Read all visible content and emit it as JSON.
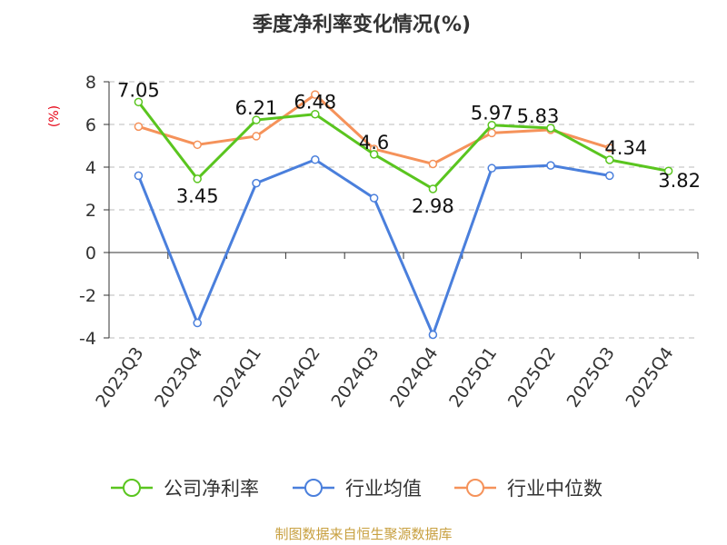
{
  "chart_data": {
    "type": "line",
    "title": "季度净利率变化情况(%)",
    "ylabel": "(%)",
    "categories": [
      "2023Q3",
      "2023Q4",
      "2024Q1",
      "2024Q2",
      "2024Q3",
      "2024Q4",
      "2025Q1",
      "2025Q2",
      "2025Q3",
      "2025Q4"
    ],
    "ylim": [
      -4,
      8
    ],
    "yticks": [
      -4,
      -2,
      0,
      2,
      4,
      6,
      8
    ],
    "grid": true,
    "legend_position": "bottom",
    "series": [
      {
        "name": "公司净利率",
        "color": "#5ac51f",
        "values": [
          7.05,
          3.45,
          6.21,
          6.48,
          4.6,
          2.98,
          5.97,
          5.83,
          4.34,
          3.82
        ],
        "labels": [
          "7.05",
          "3.45",
          "6.21",
          "6.48",
          "4.6",
          "2.98",
          "5.97",
          "5.83",
          "4.34",
          "3.82"
        ]
      },
      {
        "name": "行业均值",
        "color": "#4a7fdc",
        "values": [
          3.6,
          -3.3,
          3.25,
          4.35,
          2.55,
          -3.85,
          3.95,
          4.08,
          3.6,
          null
        ]
      },
      {
        "name": "行业中位数",
        "color": "#f5925a",
        "values": [
          5.9,
          5.05,
          5.45,
          7.4,
          4.85,
          4.15,
          5.6,
          5.75,
          4.9,
          null
        ]
      }
    ]
  },
  "footer": {
    "source": "制图数据来自恒生聚源数据库"
  }
}
